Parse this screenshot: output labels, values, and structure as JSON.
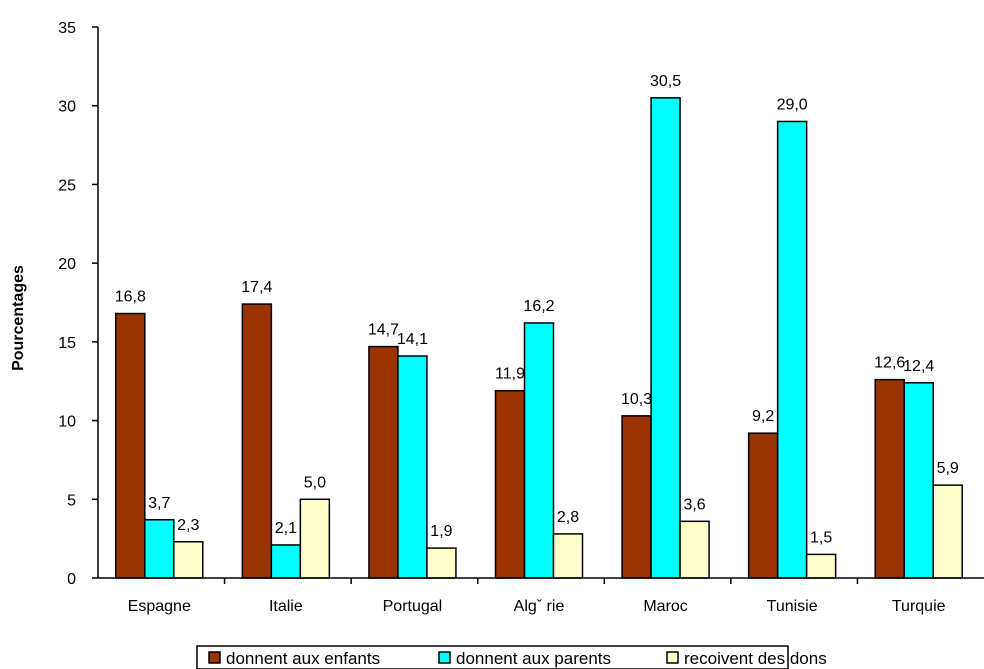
{
  "chart_data": {
    "type": "bar",
    "title": "",
    "xlabel": "",
    "ylabel": "Pourcentages",
    "ylim": [
      0,
      35
    ],
    "yticks": [
      "0",
      "5",
      "10",
      "15",
      "20",
      "25",
      "30",
      "35"
    ],
    "grid": false,
    "legend_position": "bottom",
    "categories": [
      "Espagne",
      "Italie",
      "Portugal",
      "Algˇ rie",
      "Maroc",
      "Tunisie",
      "Turquie"
    ],
    "series": [
      {
        "name": "donnent aux enfants",
        "color": "#993300",
        "values": [
          16.8,
          17.4,
          14.7,
          11.9,
          10.3,
          9.2,
          12.6
        ],
        "labels": [
          "16,8",
          "17,4",
          "14,7",
          "11,9",
          "10,3",
          "9,2",
          "12,6"
        ]
      },
      {
        "name": "donnent aux parents",
        "color": "#00ffff",
        "values": [
          3.7,
          2.1,
          14.1,
          16.2,
          30.5,
          29.0,
          12.4
        ],
        "labels": [
          "3,7",
          "2,1",
          "14,1",
          "16,2",
          "30,5",
          "29,0",
          "12,4"
        ]
      },
      {
        "name": "recoivent des dons",
        "color": "#ffffcc",
        "values": [
          2.3,
          5.0,
          1.9,
          2.8,
          3.6,
          1.5,
          5.9
        ],
        "labels": [
          "2,3",
          "5,0",
          "1,9",
          "2,8",
          "3,6",
          "1,5",
          "5,9"
        ]
      }
    ]
  }
}
